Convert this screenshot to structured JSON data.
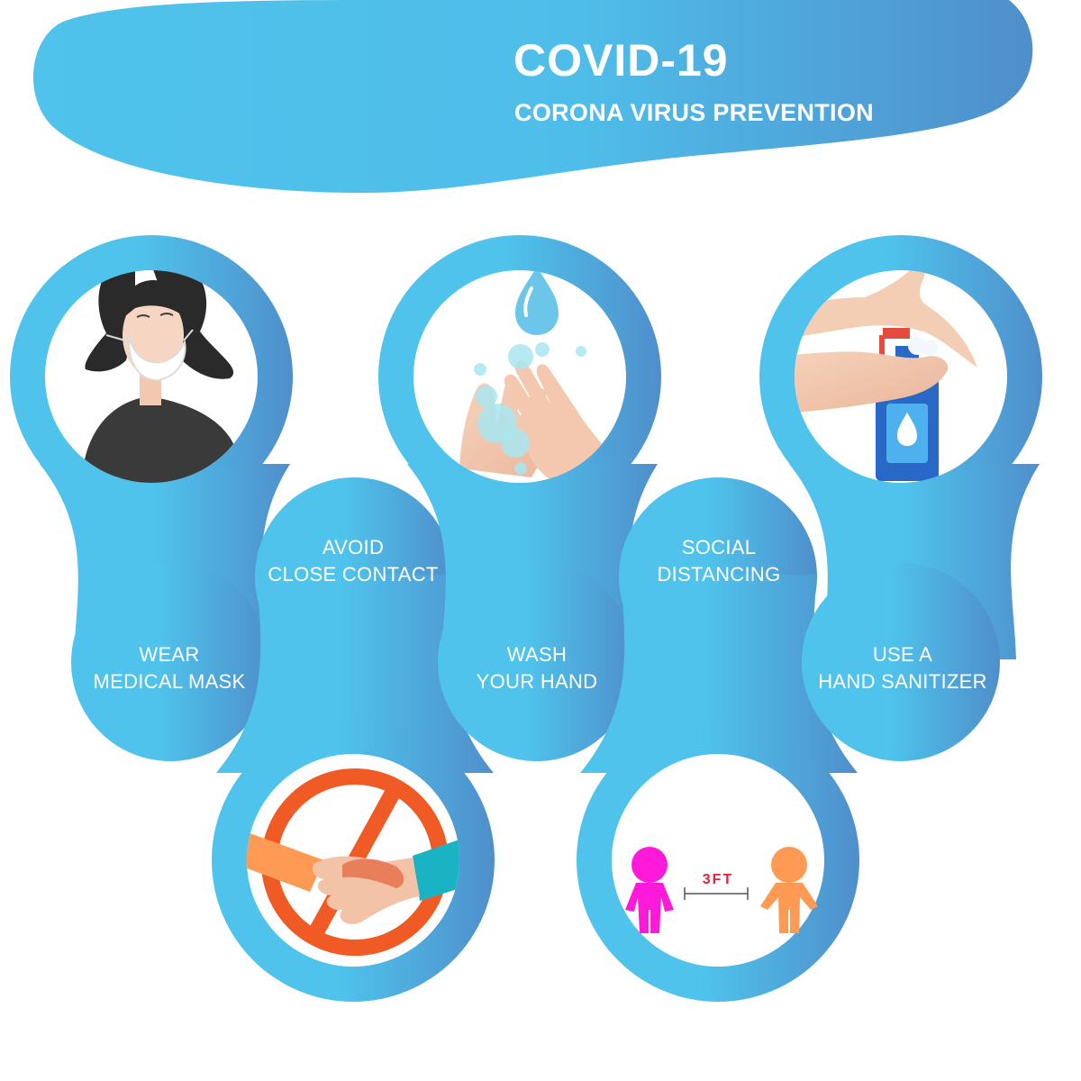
{
  "header": {
    "title": "COVID-19",
    "subtitle": "CORONA VIRUS PREVENTION"
  },
  "items": [
    {
      "line1": "WEAR",
      "line2": "MEDICAL MASK",
      "icon": "woman-with-mask-icon"
    },
    {
      "line1": "AVOID",
      "line2": "CLOSE CONTACT",
      "icon": "no-handshake-icon"
    },
    {
      "line1": "WASH",
      "line2": "YOUR HAND",
      "icon": "washing-hands-icon"
    },
    {
      "line1": "SOCIAL",
      "line2": "DISTANCING",
      "icon": "social-distance-icon"
    },
    {
      "line1": "USE A",
      "line2": "HAND SANITIZER",
      "icon": "hand-sanitizer-icon"
    }
  ],
  "distance_label": "3FT",
  "colors": {
    "blue_light": "#4fc3ec",
    "blue_dark": "#4f8fcb",
    "prohibit_orange": "#f05a24",
    "figure_magenta": "#ff1ad9",
    "figure_orange": "#ff9a55"
  }
}
